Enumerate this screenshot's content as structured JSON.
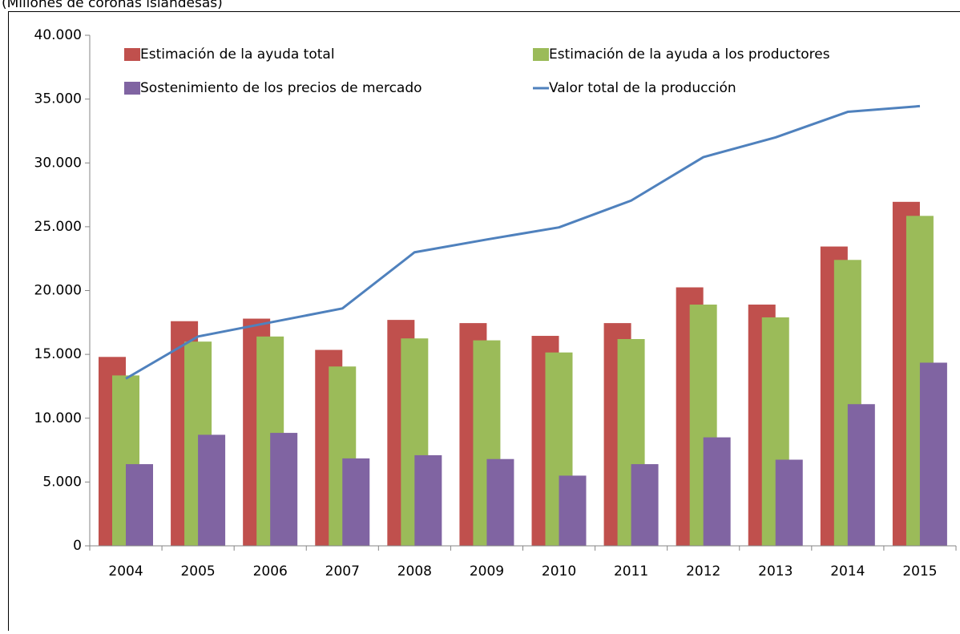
{
  "chart_data": {
    "type": "bar",
    "subtitle": "(Millones de coronas islandesas)",
    "categories": [
      "2004",
      "2005",
      "2006",
      "2007",
      "2008",
      "2009",
      "2010",
      "2011",
      "2012",
      "2013",
      "2014",
      "2015"
    ],
    "series": [
      {
        "name": "Estimación de la ayuda total",
        "color": "#c0504d",
        "type": "bar",
        "values": [
          14800,
          17600,
          17800,
          15350,
          17700,
          17450,
          16450,
          17450,
          20250,
          18900,
          23450,
          26950
        ]
      },
      {
        "name": "Estimación de la ayuda a los productores",
        "color": "#9bbb59",
        "type": "bar",
        "values": [
          13350,
          16000,
          16400,
          14050,
          16250,
          16100,
          15150,
          16200,
          18900,
          17900,
          22400,
          25850
        ]
      },
      {
        "name": "Sostenimiento de los precios de mercado",
        "color": "#8064a2",
        "type": "bar",
        "values": [
          6400,
          8700,
          8850,
          6850,
          7100,
          6800,
          5500,
          6400,
          8500,
          6750,
          11100,
          14350
        ]
      },
      {
        "name": "Valor total de la producción",
        "color": "#4f81bd",
        "type": "line",
        "values": [
          13100,
          16400,
          17500,
          18600,
          23000,
          24000,
          24950,
          27050,
          30450,
          32000,
          34000,
          34450
        ]
      }
    ],
    "ylim": [
      0,
      40000
    ],
    "yticks": [
      0,
      {
        "value": 5000,
        "label": "5.000"
      },
      {
        "value": 10000,
        "label": "10.000"
      },
      {
        "value": 15000,
        "label": "15.000"
      },
      {
        "value": 20000,
        "label": "20.000"
      },
      {
        "value": 25000,
        "label": "25.000"
      },
      {
        "value": 30000,
        "label": "30.000"
      },
      {
        "value": 35000,
        "label": "35.000"
      },
      {
        "value": 40000,
        "label": "40.000"
      }
    ],
    "grid": false,
    "legend": "top"
  }
}
